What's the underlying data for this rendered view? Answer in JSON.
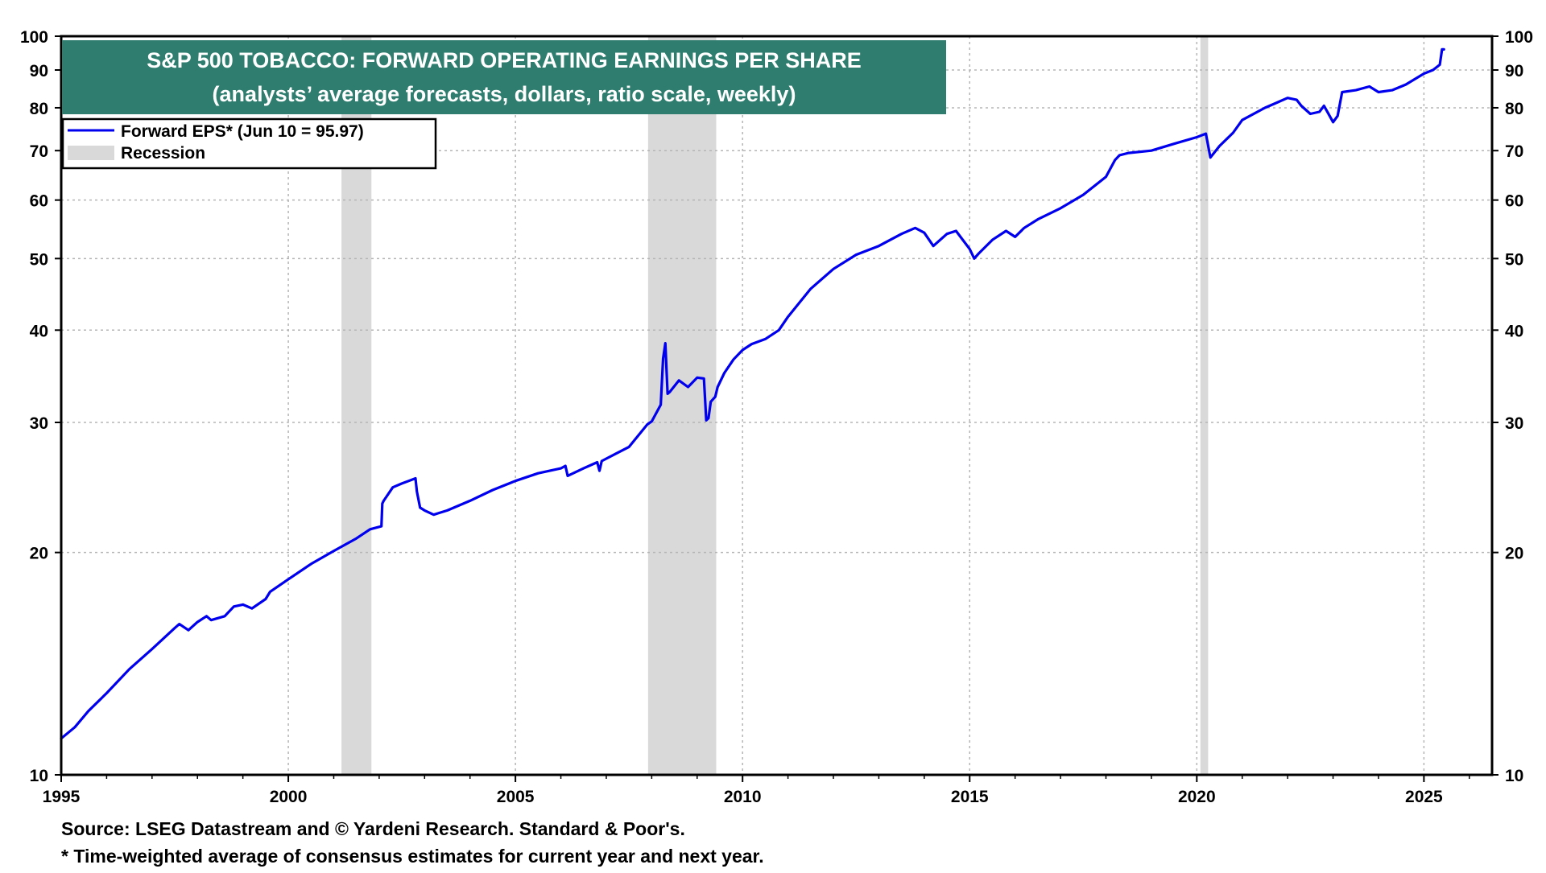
{
  "chart_data": {
    "type": "line",
    "title": "S&P 500 TOBACCO: FORWARD OPERATING EARNINGS PER SHARE",
    "subtitle": "(analysts’ average forecasts, dollars, ratio scale, weekly)",
    "yscale": "log",
    "ylim": [
      10,
      100
    ],
    "xlim": [
      1995.0,
      2026.5
    ],
    "grid": true,
    "legend_position": "top-left",
    "legend": [
      {
        "label": "Forward EPS* (Jun 10 = 95.97)",
        "kind": "line",
        "color": "#0000ee"
      },
      {
        "label": "Recession",
        "kind": "patch",
        "color": "#d9d9d9"
      }
    ],
    "x_ticks": [
      {
        "value": 1995,
        "label": "1995"
      },
      {
        "value": 2000,
        "label": "2000"
      },
      {
        "value": 2005,
        "label": "2005"
      },
      {
        "value": 2010,
        "label": "2010"
      },
      {
        "value": 2015,
        "label": "2015"
      },
      {
        "value": 2020,
        "label": "2020"
      },
      {
        "value": 2025,
        "label": "2025"
      }
    ],
    "y_ticks": [
      {
        "value": 10,
        "label": "10"
      },
      {
        "value": 20,
        "label": "20"
      },
      {
        "value": 30,
        "label": "30"
      },
      {
        "value": 40,
        "label": "40"
      },
      {
        "value": 50,
        "label": "50"
      },
      {
        "value": 60,
        "label": "60"
      },
      {
        "value": 70,
        "label": "70"
      },
      {
        "value": 80,
        "label": "80"
      },
      {
        "value": 90,
        "label": "90"
      },
      {
        "value": 100,
        "label": "100"
      }
    ],
    "recessions": [
      {
        "start": 2001.17,
        "end": 2001.83
      },
      {
        "start": 2007.92,
        "end": 2009.42
      },
      {
        "start": 2020.08,
        "end": 2020.25
      }
    ],
    "series": [
      {
        "name": "Forward EPS* (Jun 10 = 95.97)",
        "color": "#0000ee",
        "x": [
          1995.0,
          1995.3,
          1995.6,
          1996.0,
          1996.5,
          1997.0,
          1997.5,
          1997.6,
          1997.8,
          1998.0,
          1998.2,
          1998.3,
          1998.6,
          1998.8,
          1999.0,
          1999.2,
          1999.5,
          1999.6,
          2000.0,
          2000.5,
          2001.0,
          2001.5,
          2001.8,
          2002.05,
          2002.07,
          2002.1,
          2002.3,
          2002.5,
          2002.8,
          2002.83,
          2002.9,
          2003.0,
          2003.2,
          2003.3,
          2003.5,
          2004.0,
          2004.5,
          2005.0,
          2005.5,
          2006.0,
          2006.1,
          2006.15,
          2006.5,
          2006.8,
          2006.85,
          2006.9,
          2007.0,
          2007.5,
          2007.9,
          2008.0,
          2008.2,
          2008.25,
          2008.3,
          2008.35,
          2008.4,
          2008.6,
          2008.8,
          2009.0,
          2009.15,
          2009.2,
          2009.25,
          2009.3,
          2009.4,
          2009.45,
          2009.6,
          2009.8,
          2010.0,
          2010.2,
          2010.5,
          2010.8,
          2011.0,
          2011.5,
          2012.0,
          2012.5,
          2013.0,
          2013.5,
          2013.8,
          2014.0,
          2014.2,
          2014.5,
          2014.7,
          2015.0,
          2015.1,
          2015.2,
          2015.5,
          2015.8,
          2016.0,
          2016.2,
          2016.5,
          2017.0,
          2017.5,
          2018.0,
          2018.2,
          2018.3,
          2018.5,
          2019.0,
          2019.5,
          2020.0,
          2020.2,
          2020.3,
          2020.5,
          2020.8,
          2021.0,
          2021.5,
          2021.8,
          2022.0,
          2022.2,
          2022.3,
          2022.5,
          2022.7,
          2022.8,
          2023.0,
          2023.1,
          2023.2,
          2023.5,
          2023.8,
          2024.0,
          2024.3,
          2024.6,
          2025.0,
          2025.2,
          2025.3,
          2025.35,
          2025.4,
          2025.44
        ],
        "y": [
          11.2,
          11.6,
          12.2,
          12.9,
          13.9,
          14.8,
          15.8,
          16.0,
          15.7,
          16.1,
          16.4,
          16.2,
          16.4,
          16.9,
          17.0,
          16.8,
          17.3,
          17.7,
          18.4,
          19.3,
          20.1,
          20.9,
          21.5,
          21.7,
          23.3,
          23.5,
          24.5,
          24.8,
          25.2,
          24.2,
          23.0,
          22.8,
          22.5,
          22.6,
          22.8,
          23.5,
          24.3,
          25.0,
          25.6,
          26.0,
          26.2,
          25.4,
          26.0,
          26.5,
          25.8,
          26.6,
          26.8,
          27.8,
          29.8,
          30.1,
          31.7,
          36.6,
          38.4,
          32.8,
          33.0,
          34.2,
          33.5,
          34.5,
          34.4,
          30.2,
          30.4,
          32.0,
          32.5,
          33.5,
          35.0,
          36.5,
          37.6,
          38.3,
          38.9,
          40.0,
          41.7,
          45.5,
          48.4,
          50.6,
          52.0,
          54.0,
          55.0,
          54.2,
          52.0,
          54.0,
          54.5,
          51.5,
          50.0,
          50.8,
          53.0,
          54.5,
          53.5,
          55.0,
          56.5,
          58.5,
          61.0,
          64.5,
          68.0,
          69.0,
          69.5,
          70.0,
          71.5,
          73.0,
          73.8,
          68.5,
          71.0,
          74.0,
          77.0,
          80.0,
          81.5,
          82.5,
          82.0,
          80.5,
          78.5,
          79.0,
          80.5,
          76.5,
          78.0,
          84.0,
          84.5,
          85.5,
          84.0,
          84.5,
          86.0,
          89.0,
          90.0,
          91.0,
          91.5,
          96.0,
          95.97
        ]
      }
    ]
  },
  "notes": {
    "source": "Source: LSEG Datastream and © Yardeni Research. Standard & Poor's.",
    "footnote": "* Time-weighted average of consensus estimates for current year and next year."
  }
}
